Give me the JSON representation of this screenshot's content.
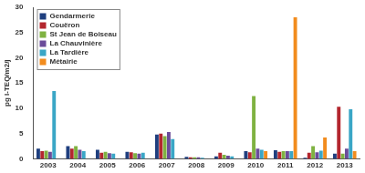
{
  "chart_data": {
    "type": "bar",
    "y_label": "pg I-TEQ/m2/j",
    "categories": [
      "2003",
      "2004",
      "2005",
      "2006",
      "2007",
      "2008",
      "2009",
      "2010",
      "2011",
      "2012",
      "2013"
    ],
    "series": [
      {
        "name": "Gendarmerie",
        "color": "#1f3f7f",
        "values": [
          2.0,
          2.5,
          1.8,
          1.4,
          4.8,
          0.4,
          0.5,
          1.5,
          1.7,
          0.2,
          1.0
        ]
      },
      {
        "name": "Couëron",
        "color": "#b3262e",
        "values": [
          1.5,
          2.0,
          1.2,
          1.3,
          5.0,
          0.3,
          1.2,
          1.3,
          1.4,
          1.2,
          10.3
        ]
      },
      {
        "name": "St Jean de Boiseau",
        "color": "#7fb241",
        "values": [
          1.6,
          2.5,
          1.4,
          1.1,
          4.5,
          0.3,
          0.8,
          12.4,
          1.5,
          2.5,
          1.0
        ]
      },
      {
        "name": "La Chauvinière",
        "color": "#6b4c9a",
        "values": [
          1.4,
          1.8,
          1.1,
          1.0,
          5.3,
          0.3,
          0.6,
          2.0,
          1.5,
          1.3,
          2.0
        ]
      },
      {
        "name": "La Tardière",
        "color": "#3aa6c6",
        "values": [
          13.4,
          1.5,
          1.0,
          1.2,
          3.9,
          0.2,
          0.5,
          1.8,
          1.5,
          1.6,
          9.8
        ]
      },
      {
        "name": "Métairie",
        "color": "#f28c1e",
        "values": [
          null,
          null,
          null,
          null,
          null,
          null,
          null,
          1.5,
          28.0,
          4.2,
          1.5
        ]
      }
    ],
    "ylim": [
      0,
      30
    ],
    "yticks": [
      0,
      5,
      10,
      15,
      20,
      25,
      30
    ],
    "grid": false,
    "legend": "top-left"
  }
}
